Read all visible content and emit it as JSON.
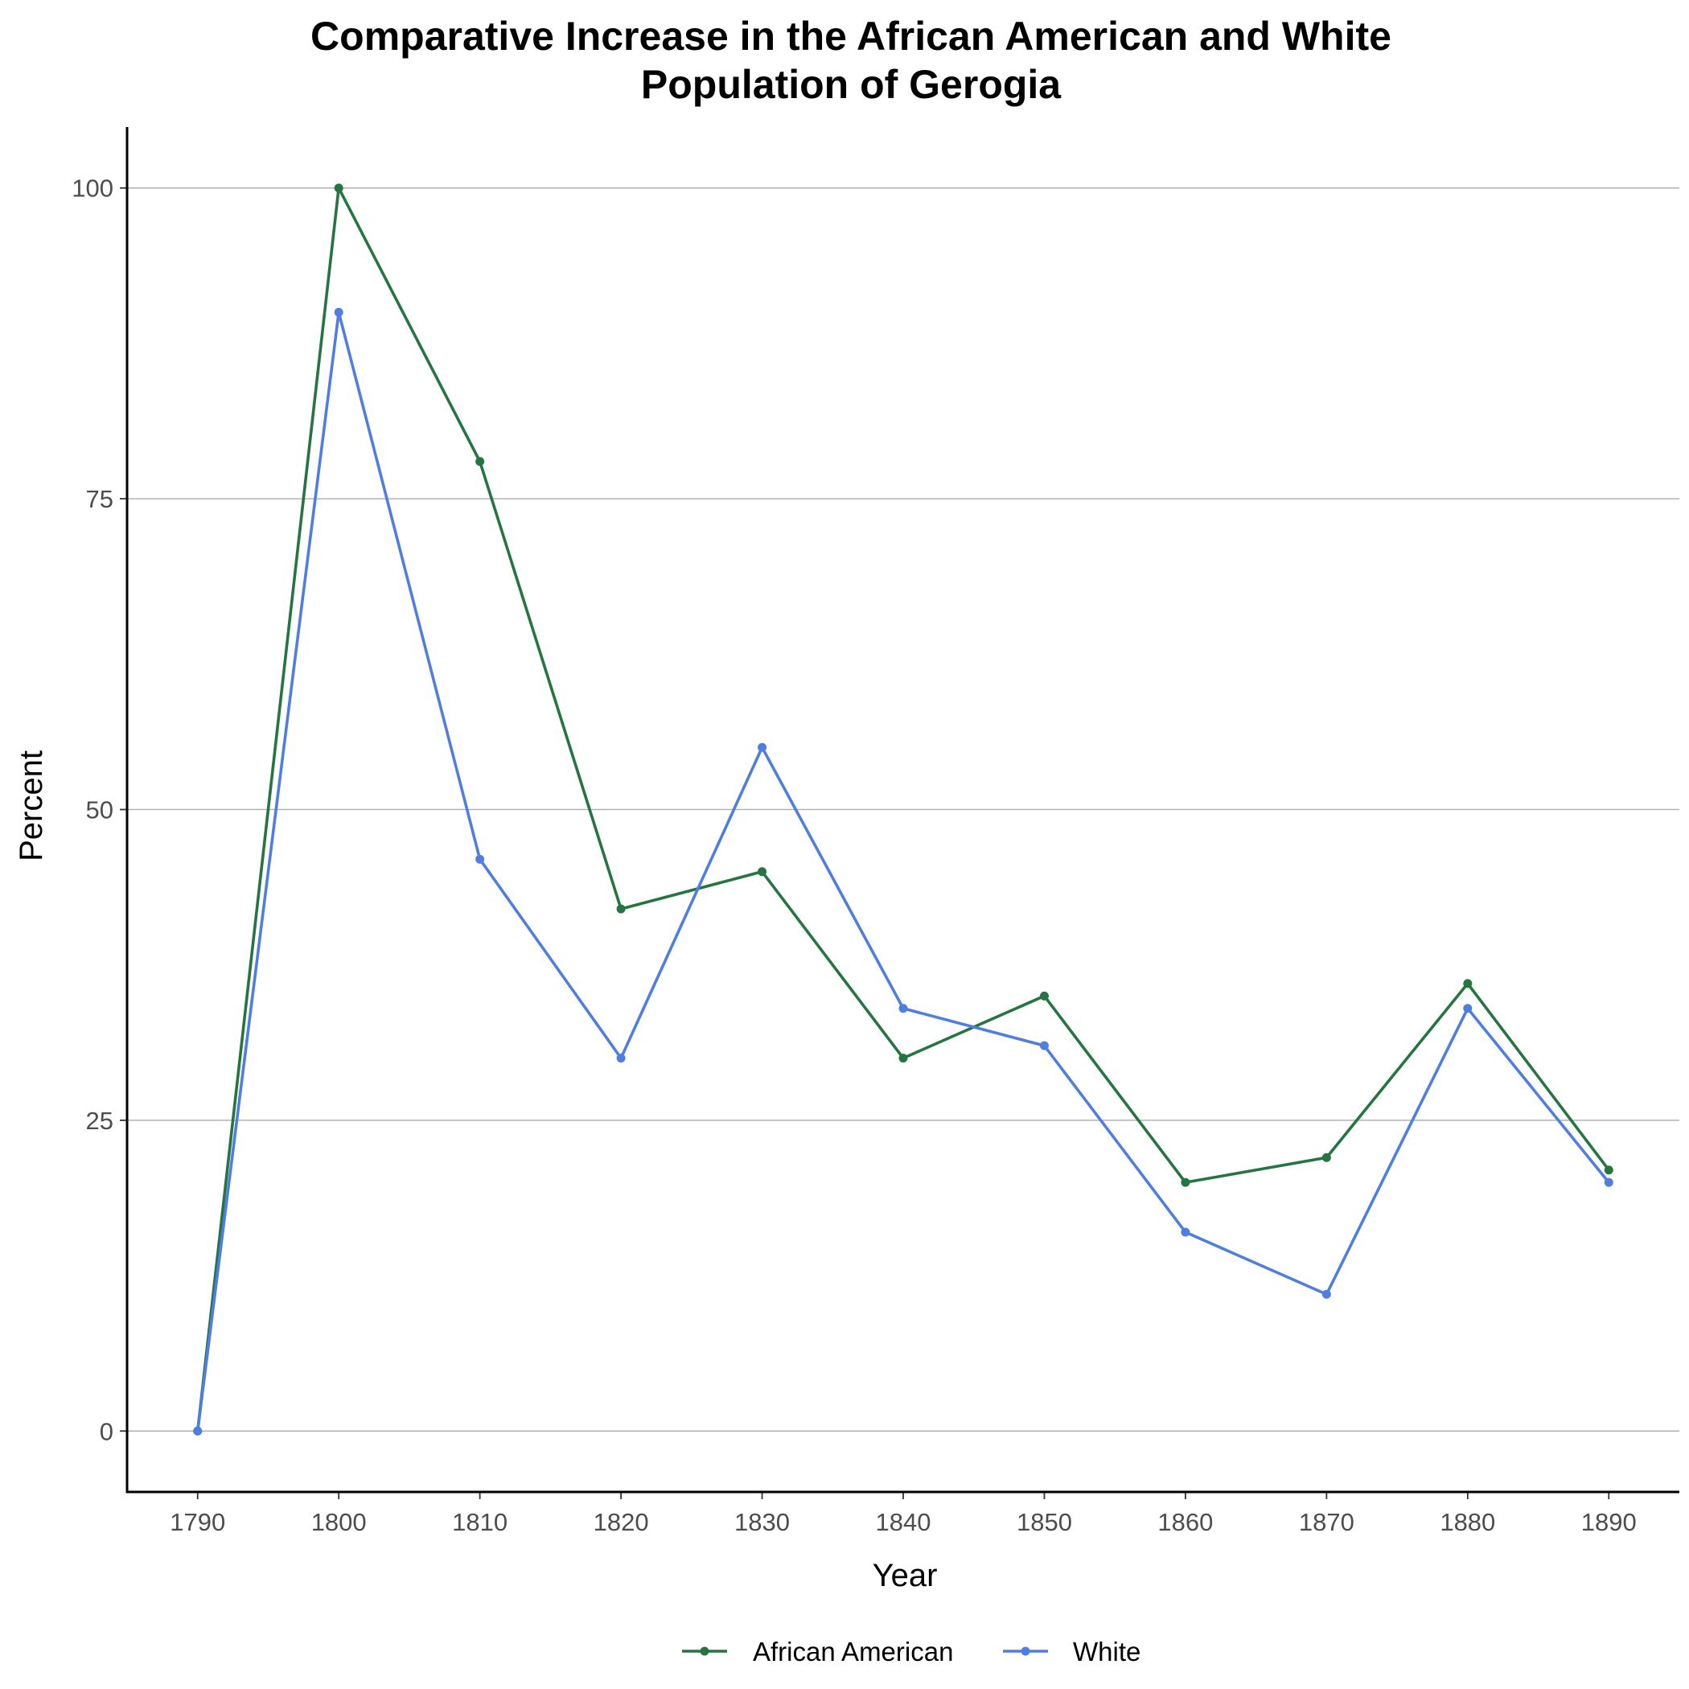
{
  "chart_data": {
    "type": "line",
    "title_lines": [
      "Comparative Increase in the African American and White",
      "Population of Gerogia"
    ],
    "xlabel": "Year",
    "ylabel": "Percent",
    "x": [
      1790,
      1800,
      1810,
      1820,
      1830,
      1840,
      1850,
      1860,
      1870,
      1880,
      1890
    ],
    "x_tick_labels": [
      "1790",
      "1800",
      "1810",
      "1820",
      "1830",
      "1840",
      "1850",
      "1860",
      "1870",
      "1880",
      "1890"
    ],
    "y_ticks": [
      0,
      25,
      50,
      75,
      100
    ],
    "y_tick_labels": [
      "0",
      "25",
      "50",
      "75",
      "100"
    ],
    "xlim": [
      1785,
      1895
    ],
    "ylim": [
      -4.9,
      104.9
    ],
    "grid": "horizontal major",
    "legend_position": "bottom",
    "series": [
      {
        "name": "African American",
        "color": "#24753f",
        "values": [
          0,
          100,
          78,
          42,
          45,
          30,
          35,
          20,
          22,
          36,
          21
        ]
      },
      {
        "name": "White",
        "color": "#4f7ee0",
        "values": [
          0,
          90,
          46,
          30,
          55,
          34,
          31,
          16,
          11,
          34,
          20
        ]
      }
    ]
  }
}
